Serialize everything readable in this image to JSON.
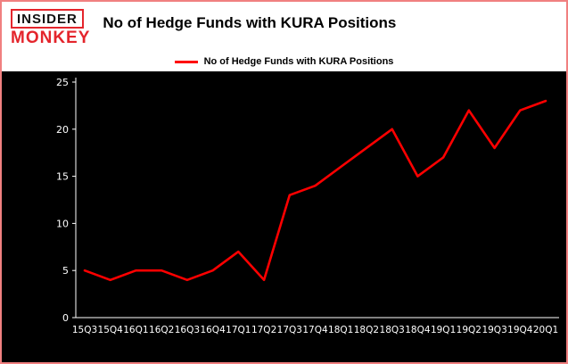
{
  "page": {
    "border_color": "#f08080",
    "background": "#ffffff",
    "plot_background": "#000000"
  },
  "logo": {
    "line1": "INSIDER",
    "line2": "MONKEY",
    "accent_color": "#e4252c"
  },
  "header": {
    "title": "No of Hedge Funds with KURA Positions"
  },
  "legend": {
    "label": "No of Hedge Funds with KURA Positions",
    "line_color": "#fe0000"
  },
  "chart_data": {
    "type": "line",
    "title": "No of Hedge Funds with KURA Positions",
    "categories": [
      "15Q3",
      "15Q4",
      "16Q1",
      "16Q2",
      "16Q3",
      "16Q4",
      "17Q1",
      "17Q2",
      "17Q3",
      "17Q4",
      "18Q1",
      "18Q2",
      "18Q3",
      "18Q4",
      "19Q1",
      "19Q2",
      "19Q3",
      "19Q4",
      "20Q1"
    ],
    "series": [
      {
        "name": "No of Hedge Funds with KURA Positions",
        "values": [
          5,
          4,
          5,
          5,
          4,
          5,
          7,
          4,
          13,
          14,
          16,
          18,
          20,
          15,
          17,
          22,
          18,
          22,
          23
        ]
      }
    ],
    "xlabel": "",
    "ylabel": "",
    "ylim": [
      0,
      25
    ],
    "yticks": [
      0,
      5,
      10,
      15,
      20,
      25
    ],
    "grid": false,
    "legend_position": "top",
    "line_color": "#fe0000",
    "axis_color": "#ffffff",
    "plot_background": "#000000"
  }
}
